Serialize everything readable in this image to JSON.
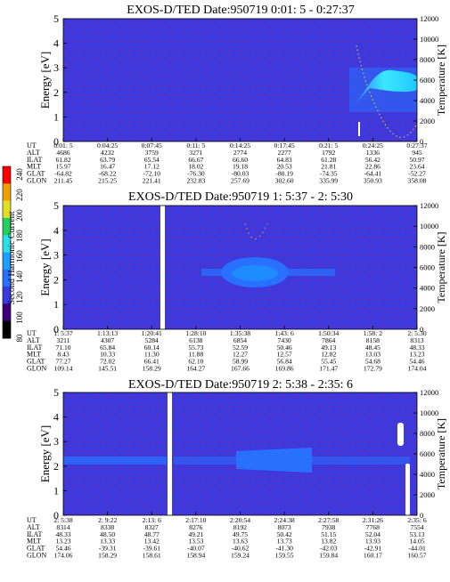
{
  "colors": {
    "background_blue": "#3a3ae0",
    "speckle_purple": "#7a2aa0",
    "band_blue": "#2a70ff",
    "hot_cyan": "#3ae8ff",
    "gap_white": "#ffffff"
  },
  "colorbar": {
    "label": "Second Harmonic Current",
    "ticks": [
      "80",
      "100",
      "120",
      "140",
      "160",
      "180",
      "200",
      "220",
      "240"
    ],
    "colors": [
      "#000000",
      "#3a007a",
      "#3a3ae0",
      "#2a70ff",
      "#1aa0ff",
      "#28e0e8",
      "#20d060",
      "#e0e020",
      "#f0a000",
      "#ff0000"
    ]
  },
  "panels": [
    {
      "title": "EXOS-D/TED   Date:950719   0:01: 5 - 0:27:37",
      "ylabel_left": "Energy [eV]",
      "ylabel_right": "Temperature [K]",
      "left_ticks": [
        "0",
        "1",
        "2",
        "3",
        "4",
        "5"
      ],
      "right_ticks": [
        "0",
        "2000",
        "4000",
        "6000",
        "8000",
        "10000",
        "12000"
      ],
      "row_labels": [
        "UT",
        "ALT",
        "ILAT",
        "MLT",
        "GLAT",
        "GLON"
      ],
      "columns": [
        [
          "0:01: 5",
          "4686",
          "61.82",
          "15.97",
          "-64.82",
          "211.45"
        ],
        [
          "0:04:25",
          "4232",
          "63.79",
          "16.47",
          "-68.22",
          "215.25"
        ],
        [
          "0:07:45",
          "3759",
          "65.54",
          "17.12",
          "-72.10",
          "221.41"
        ],
        [
          "0:11: 5",
          "3271",
          "66.67",
          "18.02",
          "-76.30",
          "232.83"
        ],
        [
          "0:14:25",
          "2774",
          "66.60",
          "19.18",
          "-80.03",
          "257.69"
        ],
        [
          "0:17:45",
          "2277",
          "64.83",
          "20.53",
          "-80.19",
          "302.60"
        ],
        [
          "0:21: 5",
          "1792",
          "61.28",
          "21.81",
          "-74.35",
          "335.99"
        ],
        [
          "0:24:25",
          "1336",
          "56.42",
          "22.86",
          "-64.41",
          "350.93"
        ],
        [
          "0:27:37",
          "945",
          "50.97",
          "23.64",
          "-52.27",
          "358.08"
        ]
      ]
    },
    {
      "title": "EXOS-D/TED   Date:950719   1: 5:37 - 2: 5:30",
      "ylabel_left": "Energy [eV]",
      "ylabel_right": "Temperature [K]",
      "left_ticks": [
        "0",
        "1",
        "2",
        "3",
        "4",
        "5"
      ],
      "right_ticks": [
        "0",
        "2000",
        "4000",
        "6000",
        "8000",
        "10000",
        "12000"
      ],
      "row_labels": [
        "UT",
        "ALT",
        "ILAT",
        "MLT",
        "GLAT",
        "GLON"
      ],
      "columns": [
        [
          "1: 5:37",
          "3211",
          "71.10",
          "8.43",
          "77.27",
          "109.14"
        ],
        [
          "1:13:13",
          "4307",
          "65.84",
          "10.33",
          "72.02",
          "145.51"
        ],
        [
          "1:20:41",
          "5284",
          "60.14",
          "11.30",
          "66.41",
          "158.29"
        ],
        [
          "1:28:10",
          "6138",
          "55.73",
          "11.88",
          "62.10",
          "164.27"
        ],
        [
          "1:35:38",
          "6854",
          "52.59",
          "12.27",
          "58.99",
          "167.66"
        ],
        [
          "1:43: 6",
          "7430",
          "50.46",
          "12.57",
          "56.84",
          "169.86"
        ],
        [
          "1:50:34",
          "7864",
          "49.13",
          "12.82",
          "55.45",
          "171.47"
        ],
        [
          "1:58: 2",
          "8158",
          "48.45",
          "13.03",
          "54.68",
          "172.79"
        ],
        [
          "2: 5:30",
          "8313",
          "48.33",
          "13.23",
          "54.46",
          "174.04"
        ]
      ]
    },
    {
      "title": "EXOS-D/TED   Date:950719   2: 5:38 - 2:35: 6",
      "ylabel_left": "Energy [eV]",
      "ylabel_right": "Temperature [K]",
      "left_ticks": [
        "0",
        "1",
        "2",
        "3",
        "4",
        "5"
      ],
      "right_ticks": [
        "0",
        "2000",
        "4000",
        "6000",
        "8000",
        "10000",
        "12000"
      ],
      "row_labels": [
        "UT",
        "ALT",
        "ILAT",
        "MLT",
        "GLAT",
        "GLON"
      ],
      "columns": [
        [
          "2: 5:38",
          "8314",
          "48.33",
          "13.23",
          "54.46",
          "174.06"
        ],
        [
          "2: 9:22",
          "8338",
          "48.50",
          "13.33",
          "-39.31",
          "158.29"
        ],
        [
          "2:13: 6",
          "8327",
          "48.77",
          "13.42",
          "-39.61",
          "158.61"
        ],
        [
          "2:17:10",
          "8276",
          "49.21",
          "13.53",
          "-40.07",
          "158.94"
        ],
        [
          "2:20:54",
          "8192",
          "49.75",
          "13.63",
          "-40.62",
          "159.24"
        ],
        [
          "2:24:38",
          "8073",
          "50.42",
          "13.73",
          "-41.30",
          "159.55"
        ],
        [
          "2:27:58",
          "7938",
          "51.15",
          "13.82",
          "-42.03",
          "159.84"
        ],
        [
          "2:31:26",
          "7768",
          "52.04",
          "13.93",
          "-42.91",
          "160.17"
        ],
        [
          "2:35: 6",
          "7554",
          "53.13",
          "14.05",
          "-44.01",
          "160.57"
        ]
      ]
    }
  ]
}
